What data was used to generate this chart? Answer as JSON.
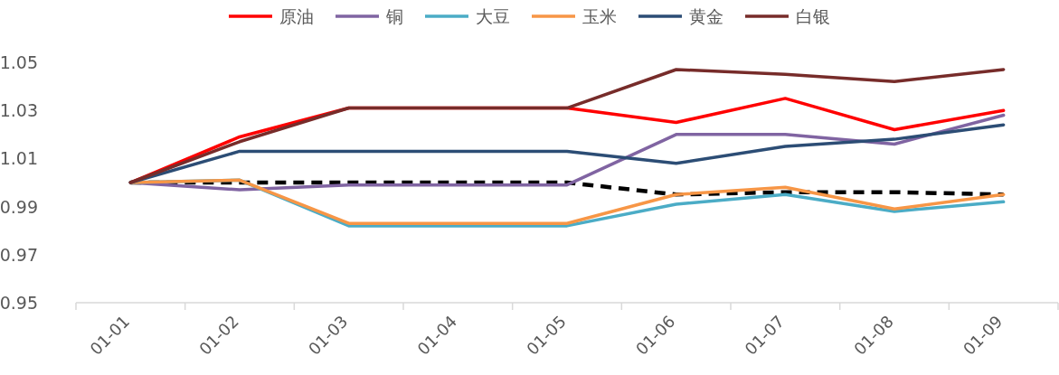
{
  "chart_data": {
    "type": "line",
    "categories": [
      "01-01",
      "01-02",
      "01-03",
      "01-04",
      "01-05",
      "01-06",
      "01-07",
      "01-08",
      "01-09"
    ],
    "ylim": [
      0.95,
      1.05
    ],
    "yticks": [
      0.95,
      0.97,
      0.99,
      1.01,
      1.03,
      1.05
    ],
    "legend": "top",
    "line_style": "solid",
    "series": [
      {
        "color": "#000000",
        "line_style": "dashed",
        "values": [
          1.0,
          1.0,
          1.0,
          1.0,
          1.0,
          0.995,
          0.996,
          0.996,
          0.995
        ]
      },
      {
        "name": "原油",
        "color": "#ff0000",
        "values": [
          1.0,
          1.019,
          1.031,
          1.031,
          1.031,
          1.025,
          1.035,
          1.022,
          1.03
        ]
      },
      {
        "name": "铜",
        "color": "#8064a2",
        "values": [
          1.0,
          0.997,
          0.999,
          0.999,
          0.999,
          1.02,
          1.02,
          1.016,
          1.028
        ]
      },
      {
        "name": "大豆",
        "color": "#4bacc6",
        "values": [
          1.0,
          1.001,
          0.982,
          0.982,
          0.982,
          0.991,
          0.995,
          0.988,
          0.992
        ]
      },
      {
        "name": "玉米",
        "color": "#f79646",
        "values": [
          1.0,
          1.001,
          0.983,
          0.983,
          0.983,
          0.995,
          0.998,
          0.989,
          0.995
        ]
      },
      {
        "name": "黄金",
        "color": "#2c4d75",
        "values": [
          1.0,
          1.013,
          1.013,
          1.013,
          1.013,
          1.008,
          1.015,
          1.018,
          1.024
        ]
      },
      {
        "name": "白银",
        "color": "#772c2a",
        "values": [
          1.0,
          1.017,
          1.031,
          1.031,
          1.031,
          1.047,
          1.045,
          1.042,
          1.047
        ]
      }
    ]
  }
}
